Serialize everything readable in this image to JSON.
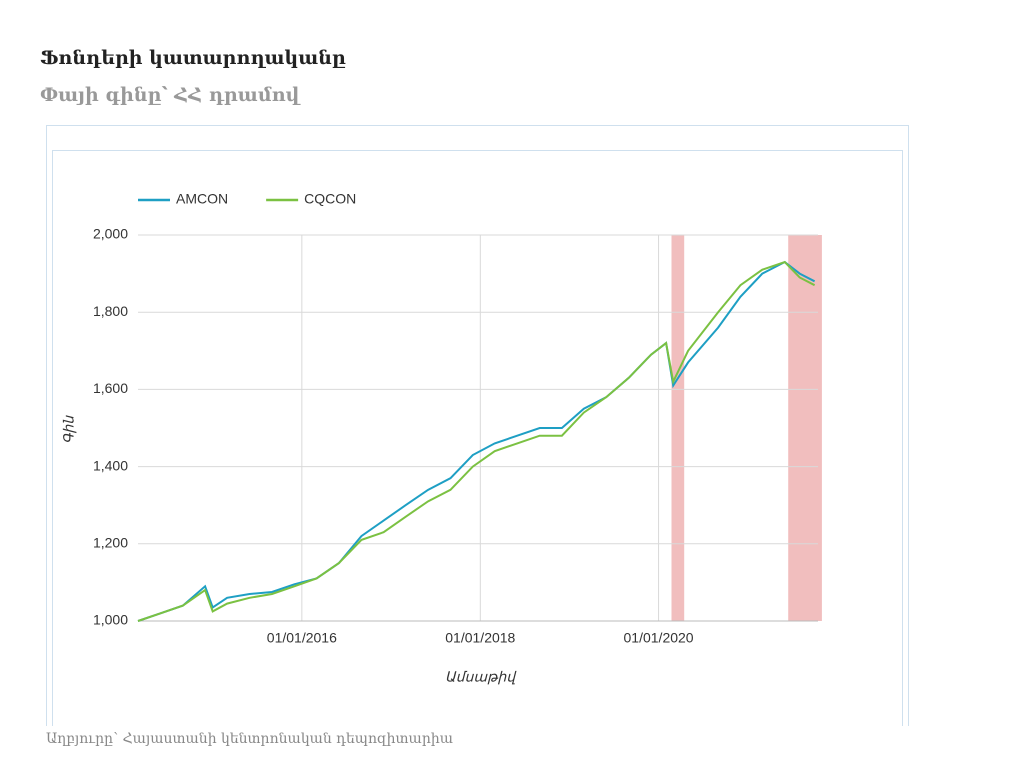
{
  "header": {
    "title": "Ֆոնդերի կատարողականը",
    "subtitle": "Փայի գինը՝ ՀՀ դրամով"
  },
  "footer": {
    "source": "Աղբյուրը՝ Հայաստանի կենտրոնական դեպոզիտարիա"
  },
  "chart_data": {
    "type": "line",
    "x_label": "Ամսաթիվ",
    "y_label": "Գին",
    "x": [
      "01/03/2014",
      "01/06/2014",
      "01/09/2014",
      "01/12/2014",
      "01/01/2015",
      "01/03/2015",
      "01/06/2015",
      "01/09/2015",
      "01/12/2015",
      "01/03/2016",
      "01/06/2016",
      "01/09/2016",
      "01/12/2016",
      "01/03/2017",
      "01/06/2017",
      "01/09/2017",
      "01/12/2017",
      "01/03/2018",
      "01/06/2018",
      "01/09/2018",
      "01/12/2018",
      "01/03/2019",
      "01/06/2019",
      "01/09/2019",
      "01/12/2019",
      "01/02/2020",
      "01/03/2020",
      "01/05/2020",
      "01/09/2020",
      "01/12/2020",
      "01/03/2021",
      "01/06/2021",
      "01/08/2021",
      "01/10/2021"
    ],
    "series": [
      {
        "name": "AMCON",
        "color": "#1e9fc4",
        "values": [
          1000,
          1020,
          1040,
          1090,
          1035,
          1060,
          1070,
          1075,
          1095,
          1110,
          1150,
          1220,
          1260,
          1300,
          1340,
          1370,
          1430,
          1460,
          1480,
          1500,
          1500,
          1550,
          1580,
          1630,
          1690,
          1720,
          1610,
          1670,
          1760,
          1840,
          1900,
          1930,
          1900,
          1880
        ]
      },
      {
        "name": "CQCON",
        "color": "#7bc142",
        "values": [
          1000,
          1020,
          1040,
          1080,
          1025,
          1045,
          1060,
          1070,
          1090,
          1110,
          1150,
          1210,
          1230,
          1270,
          1310,
          1340,
          1400,
          1440,
          1460,
          1480,
          1480,
          1540,
          1580,
          1630,
          1690,
          1720,
          1620,
          1700,
          1800,
          1870,
          1910,
          1930,
          1890,
          1870
        ]
      }
    ],
    "shaded_ranges": [
      [
        "23/02/2020",
        "15/04/2020"
      ],
      [
        "15/06/2021",
        "31/10/2021"
      ]
    ],
    "shade_color": "#eba3a3",
    "xlim": [
      "01/03/2014",
      "15/10/2021"
    ],
    "xticks": [
      "01/01/2016",
      "01/01/2018",
      "01/01/2020"
    ],
    "ylim": [
      1000,
      2000
    ],
    "yticks": [
      {
        "value": 1000,
        "label": "1,000"
      },
      {
        "value": 1200,
        "label": "1,200"
      },
      {
        "value": 1400,
        "label": "1,400"
      },
      {
        "value": 1600,
        "label": "1,600"
      },
      {
        "value": 1800,
        "label": "1,800"
      },
      {
        "value": 2000,
        "label": "2,000"
      }
    ],
    "grid": true,
    "legend": "top-left"
  }
}
